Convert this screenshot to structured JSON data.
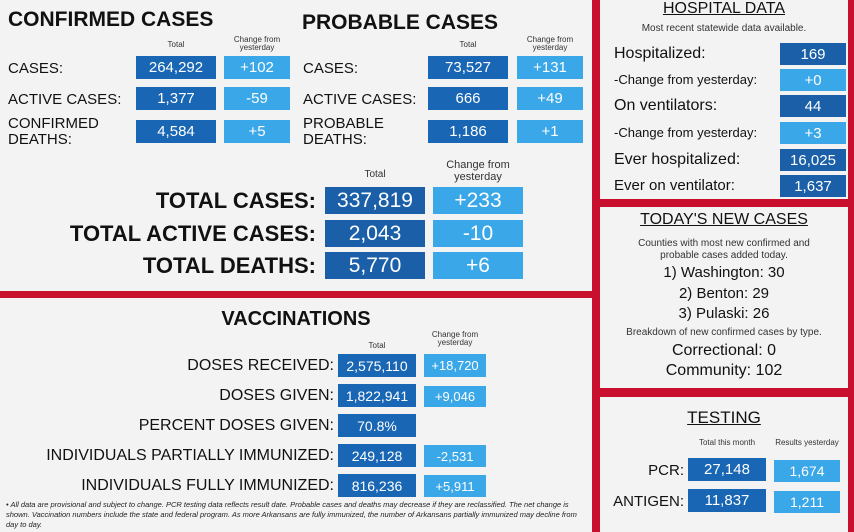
{
  "confirmed": {
    "title": "CONFIRMED CASES",
    "total_hdr": "Total",
    "change_hdr": "Change from yesterday",
    "rows": [
      {
        "label": "CASES:",
        "total": "264,292",
        "change": "+102"
      },
      {
        "label": "ACTIVE CASES:",
        "total": "1,377",
        "change": "-59"
      },
      {
        "label": "CONFIRMED DEATHS:",
        "total": "4,584",
        "change": "+5"
      }
    ]
  },
  "probable": {
    "title": "PROBABLE CASES",
    "total_hdr": "Total",
    "change_hdr": "Change from yesterday",
    "rows": [
      {
        "label": "CASES:",
        "total": "73,527",
        "change": "+131"
      },
      {
        "label": "ACTIVE CASES:",
        "total": "666",
        "change": "+49"
      },
      {
        "label": "PROBABLE DEATHS:",
        "total": "1,186",
        "change": "+1"
      }
    ]
  },
  "totals": {
    "total_hdr": "Total",
    "change_hdr": "Change from yesterday",
    "rows": [
      {
        "label": "TOTAL CASES:",
        "total": "337,819",
        "change": "+233"
      },
      {
        "label": "TOTAL ACTIVE CASES:",
        "total": "2,043",
        "change": "-10"
      },
      {
        "label": "TOTAL DEATHS:",
        "total": "5,770",
        "change": "+6"
      }
    ]
  },
  "hospital": {
    "title": "HOSPITAL DATA",
    "subtitle": "Most recent statewide data available.",
    "rows": [
      {
        "label": "Hospitalized:",
        "value": "169"
      },
      {
        "label": "-Change from yesterday:",
        "value": "+0"
      },
      {
        "label": "On ventilators:",
        "value": "44"
      },
      {
        "label": "-Change from yesterday:",
        "value": "+3"
      },
      {
        "label": "Ever hospitalized:",
        "value": "16,025"
      },
      {
        "label": "Ever on ventilator:",
        "value": "1,637"
      }
    ]
  },
  "new_cases": {
    "title": "TODAY'S NEW CASES",
    "subtitle": "Counties with most new confirmed and probable cases added today.",
    "counties": [
      "1) Washington: 30",
      "2) Benton: 29",
      "3) Pulaski: 26"
    ],
    "breakdown_title": "Breakdown of new confirmed cases by type.",
    "correctional": "Correctional: 0",
    "community": "Community: 102"
  },
  "vaccinations": {
    "title": "VACCINATIONS",
    "total_hdr": "Total",
    "change_hdr": "Change from yesterday",
    "rows": [
      {
        "label": "DOSES RECEIVED:",
        "total": "2,575,110",
        "change": "+18,720"
      },
      {
        "label": "DOSES GIVEN:",
        "total": "1,822,941",
        "change": "+9,046"
      },
      {
        "label": "PERCENT DOSES GIVEN:",
        "total": "70.8%",
        "change": ""
      },
      {
        "label": "INDIVIDUALS PARTIALLY IMMUNIZED:",
        "total": "249,128",
        "change": "-2,531"
      },
      {
        "label": "INDIVIDUALS FULLY IMMUNIZED:",
        "total": "816,236",
        "change": "+5,911"
      }
    ]
  },
  "testing": {
    "title": "TESTING",
    "month_hdr": "Total this month",
    "yesterday_hdr": "Results yesterday",
    "rows": [
      {
        "label": "PCR:",
        "month": "27,148",
        "yesterday": "1,674"
      },
      {
        "label": "ANTIGEN:",
        "month": "11,837",
        "yesterday": "1,211"
      }
    ]
  },
  "footnote": "All data are provisional and subject to change. PCR testing data reflects result date. Probable cases and deaths may decrease if they are reclassified. The net change is shown.  Vaccination numbers include the state and federal program. As more Arkansans are fully immunized, the number of Arkansans partially immunized may decline from day to day."
}
